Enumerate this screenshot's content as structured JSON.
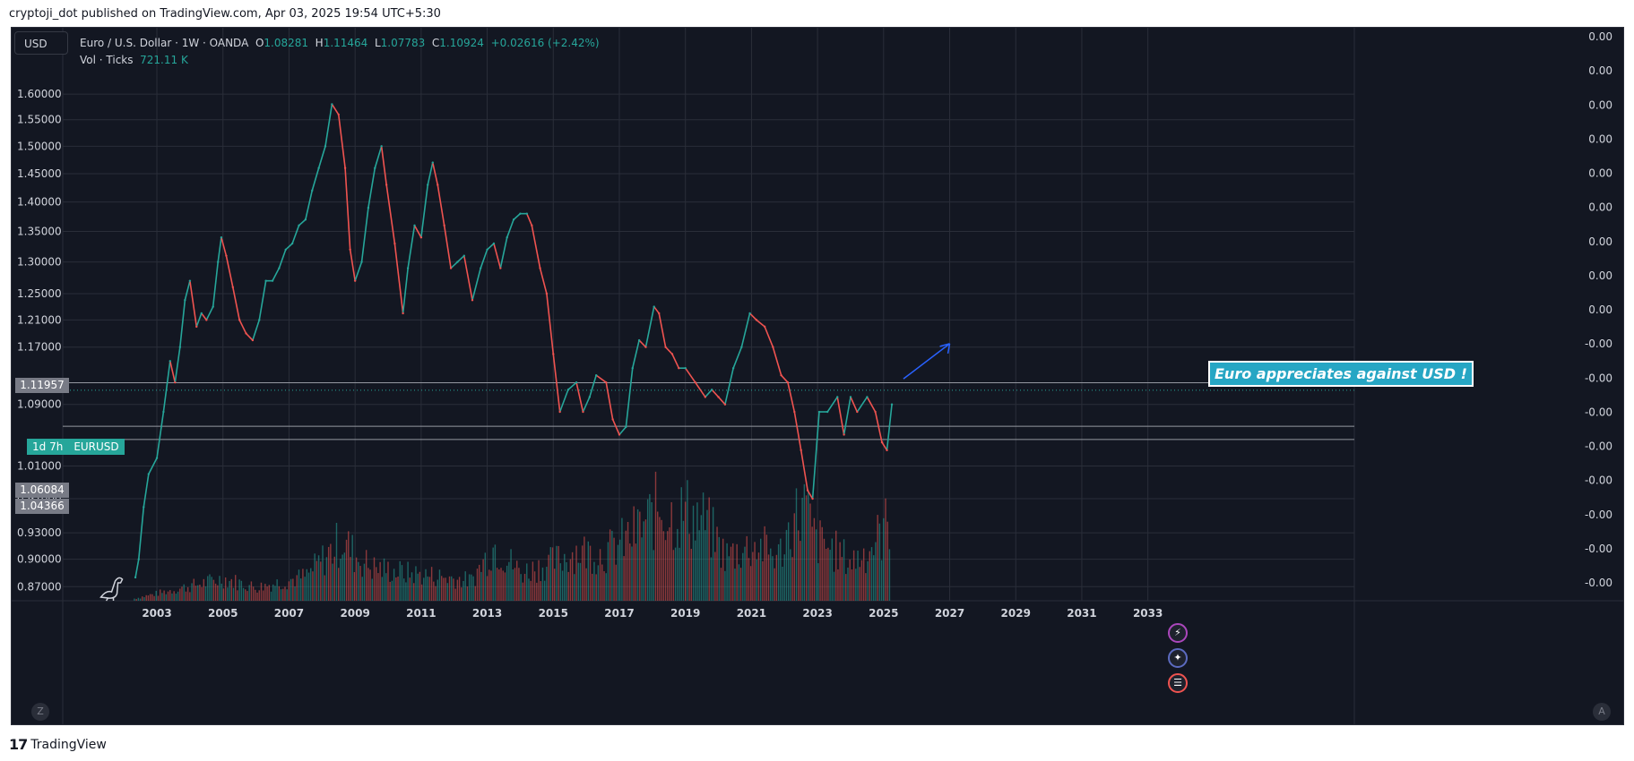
{
  "caption": "cryptoji_dot published on TradingView.com, Apr 03, 2025 19:54 UTC+5:30",
  "brand": {
    "logo": "17",
    "name": "TradingView"
  },
  "toolbar": {
    "currency": "USD"
  },
  "legend": {
    "symbol": "Euro / U.S. Dollar · 1W · OANDA",
    "open_label": "O",
    "open": "1.08281",
    "high_label": "H",
    "high": "1.11464",
    "low_label": "L",
    "low": "1.07783",
    "close_label": "C",
    "close": "1.10924",
    "change": "+0.02616 (+2.42%)",
    "volume_label": "Vol · Ticks",
    "volume": "721.11 K"
  },
  "annotation": "Euro appreciates against USD !",
  "countdown": {
    "time": "1d 7h",
    "symbol": "EURUSD"
  },
  "price_tags": [
    "1.11957",
    "1.06084",
    "1.04366"
  ],
  "corner_buttons": {
    "left": "Z",
    "right": "A"
  },
  "event_icons": [
    "lightning-icon",
    "eu-flag-icon",
    "us-flag-icon"
  ],
  "colors": {
    "up": "#26a69a",
    "down": "#ef5350",
    "background": "#131722",
    "grid": "#2a2e39",
    "annotation": "#26a6c4"
  },
  "chart_data": {
    "type": "line",
    "title": "",
    "symbol": "EURUSD",
    "interval": "1W",
    "exchange": "OANDA",
    "y_axis": {
      "scale": "log",
      "ticks": [
        "1.60000",
        "1.55000",
        "1.50000",
        "1.45000",
        "1.40000",
        "1.35000",
        "1.30000",
        "1.25000",
        "1.21000",
        "1.17000",
        "1.09000",
        "1.01000",
        "0.97000",
        "0.93000",
        "0.90000",
        "0.87000"
      ],
      "range": [
        0.855,
        1.68
      ]
    },
    "right_axis_ticks": [
      "0.00",
      "0.00",
      "0.00",
      "0.00",
      "0.00",
      "0.00",
      "0.00",
      "0.00",
      "0.00",
      "-0.00",
      "-0.00",
      "-0.00",
      "-0.00",
      "-0.00",
      "-0.00",
      "-0.00",
      "-0.00"
    ],
    "x_axis": {
      "ticks": [
        "2003",
        "2005",
        "2007",
        "2009",
        "2011",
        "2013",
        "2015",
        "2017",
        "2019",
        "2021",
        "2023",
        "2025",
        "2027",
        "2029",
        "2031",
        "2033"
      ],
      "range": [
        2000.15,
        2039.25
      ]
    },
    "price_series": {
      "name": "EURUSD",
      "x": [
        2002.35,
        2002.45,
        2002.6,
        2002.75,
        2003.0,
        2003.2,
        2003.4,
        2003.55,
        2003.7,
        2003.85,
        2004.0,
        2004.2,
        2004.35,
        2004.5,
        2004.7,
        2004.85,
        2004.95,
        2005.1,
        2005.3,
        2005.5,
        2005.7,
        2005.9,
        2006.1,
        2006.3,
        2006.5,
        2006.7,
        2006.9,
        2007.1,
        2007.3,
        2007.5,
        2007.7,
        2007.9,
        2008.1,
        2008.3,
        2008.5,
        2008.7,
        2008.85,
        2009.0,
        2009.2,
        2009.4,
        2009.6,
        2009.8,
        2009.95,
        2010.2,
        2010.45,
        2010.6,
        2010.8,
        2011.0,
        2011.2,
        2011.35,
        2011.5,
        2011.7,
        2011.9,
        2012.1,
        2012.3,
        2012.55,
        2012.8,
        2013.0,
        2013.2,
        2013.4,
        2013.6,
        2013.8,
        2014.0,
        2014.2,
        2014.35,
        2014.6,
        2014.8,
        2015.0,
        2015.2,
        2015.45,
        2015.7,
        2015.9,
        2016.1,
        2016.3,
        2016.6,
        2016.8,
        2017.0,
        2017.2,
        2017.4,
        2017.6,
        2017.8,
        2018.05,
        2018.2,
        2018.4,
        2018.6,
        2018.8,
        2019.0,
        2019.3,
        2019.6,
        2019.8,
        2020.0,
        2020.2,
        2020.45,
        2020.7,
        2020.95,
        2021.15,
        2021.4,
        2021.65,
        2021.9,
        2022.1,
        2022.3,
        2022.5,
        2022.7,
        2022.85,
        2023.05,
        2023.3,
        2023.6,
        2023.8,
        2024.0,
        2024.2,
        2024.5,
        2024.75,
        2024.95,
        2025.1,
        2025.25
      ],
      "y": [
        0.88,
        0.9,
        0.96,
        1.0,
        1.02,
        1.08,
        1.15,
        1.12,
        1.17,
        1.24,
        1.27,
        1.2,
        1.22,
        1.21,
        1.23,
        1.3,
        1.34,
        1.31,
        1.26,
        1.21,
        1.19,
        1.18,
        1.21,
        1.27,
        1.27,
        1.29,
        1.32,
        1.33,
        1.36,
        1.37,
        1.42,
        1.46,
        1.5,
        1.58,
        1.56,
        1.46,
        1.32,
        1.27,
        1.3,
        1.39,
        1.46,
        1.5,
        1.43,
        1.33,
        1.22,
        1.29,
        1.36,
        1.34,
        1.43,
        1.47,
        1.43,
        1.36,
        1.29,
        1.3,
        1.31,
        1.24,
        1.29,
        1.32,
        1.33,
        1.29,
        1.34,
        1.37,
        1.38,
        1.38,
        1.36,
        1.29,
        1.25,
        1.16,
        1.08,
        1.11,
        1.12,
        1.08,
        1.1,
        1.13,
        1.12,
        1.07,
        1.05,
        1.06,
        1.14,
        1.18,
        1.17,
        1.23,
        1.22,
        1.17,
        1.16,
        1.14,
        1.14,
        1.12,
        1.1,
        1.11,
        1.1,
        1.09,
        1.14,
        1.17,
        1.22,
        1.21,
        1.2,
        1.17,
        1.13,
        1.12,
        1.08,
        1.03,
        0.98,
        0.97,
        1.08,
        1.08,
        1.1,
        1.05,
        1.1,
        1.08,
        1.1,
        1.08,
        1.04,
        1.03,
        1.09
      ]
    },
    "volume_series": {
      "name": "Vol · Ticks",
      "x": [
        2002.3,
        2005.0,
        2006.0,
        2007.5,
        2008.6,
        2009.0,
        2009.5,
        2010.5,
        2011.5,
        2012.5,
        2013.2,
        2014.0,
        2015.0,
        2015.7,
        2016.5,
        2017.2,
        2017.8,
        2018.2,
        2018.6,
        2019.0,
        2019.6,
        2020.2,
        2020.6,
        2021.2,
        2021.8,
        2022.3,
        2022.6,
        2022.9,
        2023.5,
        2024.0,
        2024.5,
        2024.9,
        2025.2
      ],
      "y": [
        0.02,
        0.2,
        0.12,
        0.22,
        0.55,
        0.4,
        0.3,
        0.25,
        0.22,
        0.18,
        0.5,
        0.25,
        0.35,
        0.45,
        0.42,
        0.55,
        0.7,
        0.85,
        0.75,
        0.8,
        0.7,
        0.4,
        0.45,
        0.5,
        0.4,
        0.75,
        0.85,
        0.55,
        0.45,
        0.35,
        0.45,
        0.6,
        0.75
      ]
    },
    "horizontal_lines": [
      1.11957,
      1.06084,
      1.04366
    ],
    "current_price": 1.10924,
    "grid": true,
    "legend": "top-left"
  }
}
